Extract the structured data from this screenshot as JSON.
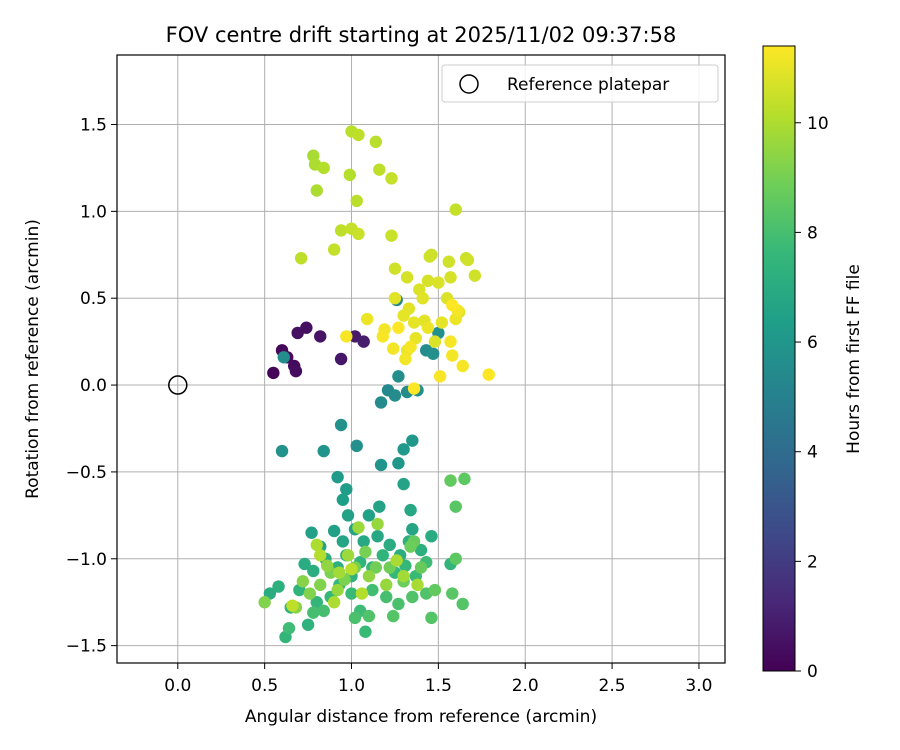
{
  "chart_data": {
    "type": "scatter",
    "title": "FOV centre drift starting at 2025/11/02 09:37:58",
    "xlabel": "Angular distance from reference (arcmin)",
    "ylabel": "Rotation from reference (arcmin)",
    "xlim": [
      -0.35,
      3.15
    ],
    "ylim": [
      -1.6,
      1.9
    ],
    "xticks": [
      0.0,
      0.5,
      1.0,
      1.5,
      2.0,
      2.5,
      3.0
    ],
    "xtick_labels": [
      "0.0",
      "0.5",
      "1.0",
      "1.5",
      "2.0",
      "2.5",
      "3.0"
    ],
    "yticks": [
      -1.5,
      -1.0,
      -0.5,
      0.0,
      0.5,
      1.0,
      1.5
    ],
    "ytick_labels": [
      "−1.5",
      "−1.0",
      "−0.5",
      "0.0",
      "0.5",
      "1.0",
      "1.5"
    ],
    "grid": true,
    "legend": {
      "location": "top-right",
      "entries": [
        "Reference platepar"
      ]
    },
    "reference_point": {
      "x": 0.0,
      "y": 0.0,
      "label": "Reference platepar"
    },
    "colorbar": {
      "label": "Hours from first FF file",
      "range": [
        0,
        11.4
      ],
      "ticks": [
        0,
        2,
        4,
        6,
        8,
        10
      ],
      "tick_labels": [
        "0",
        "2",
        "4",
        "6",
        "8",
        "10"
      ],
      "colormap": "viridis"
    },
    "points": [
      {
        "x": 0.55,
        "y": 0.07,
        "h": 0.1
      },
      {
        "x": 0.6,
        "y": 0.2,
        "h": 0.2
      },
      {
        "x": 0.63,
        "y": 0.16,
        "h": 0.3
      },
      {
        "x": 0.67,
        "y": 0.11,
        "h": 0.3
      },
      {
        "x": 0.68,
        "y": 0.08,
        "h": 0.4
      },
      {
        "x": 0.69,
        "y": 0.3,
        "h": 0.5
      },
      {
        "x": 0.74,
        "y": 0.33,
        "h": 0.5
      },
      {
        "x": 0.82,
        "y": 0.28,
        "h": 0.6
      },
      {
        "x": 0.94,
        "y": 0.15,
        "h": 0.7
      },
      {
        "x": 1.02,
        "y": 0.28,
        "h": 0.8
      },
      {
        "x": 1.07,
        "y": 0.25,
        "h": 0.9
      },
      {
        "x": 0.61,
        "y": 0.16,
        "h": 5.6
      },
      {
        "x": 0.6,
        "y": -0.38,
        "h": 5.8
      },
      {
        "x": 0.84,
        "y": -0.38,
        "h": 5.9
      },
      {
        "x": 0.94,
        "y": -0.23,
        "h": 5.8
      },
      {
        "x": 1.03,
        "y": -0.35,
        "h": 5.7
      },
      {
        "x": 1.17,
        "y": -0.1,
        "h": 5.5
      },
      {
        "x": 1.21,
        "y": -0.03,
        "h": 5.4
      },
      {
        "x": 1.25,
        "y": -0.06,
        "h": 5.5
      },
      {
        "x": 1.27,
        "y": 0.05,
        "h": 5.6
      },
      {
        "x": 1.32,
        "y": -0.04,
        "h": 5.5
      },
      {
        "x": 1.38,
        "y": -0.03,
        "h": 5.6
      },
      {
        "x": 1.26,
        "y": 0.49,
        "h": 5.3
      },
      {
        "x": 1.43,
        "y": 0.2,
        "h": 5.5
      },
      {
        "x": 1.47,
        "y": 0.18,
        "h": 5.7
      },
      {
        "x": 1.5,
        "y": 0.3,
        "h": 5.7
      },
      {
        "x": 1.17,
        "y": -0.46,
        "h": 5.9
      },
      {
        "x": 1.27,
        "y": -0.45,
        "h": 6.0
      },
      {
        "x": 1.3,
        "y": -0.37,
        "h": 6.1
      },
      {
        "x": 1.35,
        "y": -0.32,
        "h": 6.0
      },
      {
        "x": 0.92,
        "y": -0.53,
        "h": 6.2
      },
      {
        "x": 0.97,
        "y": -0.6,
        "h": 6.3
      },
      {
        "x": 0.95,
        "y": -0.66,
        "h": 6.4
      },
      {
        "x": 0.98,
        "y": -0.75,
        "h": 6.5
      },
      {
        "x": 1.1,
        "y": -0.75,
        "h": 6.5
      },
      {
        "x": 1.16,
        "y": -0.7,
        "h": 6.6
      },
      {
        "x": 1.3,
        "y": -0.57,
        "h": 6.6
      },
      {
        "x": 1.34,
        "y": -0.72,
        "h": 6.8
      },
      {
        "x": 1.35,
        "y": -0.83,
        "h": 6.7
      },
      {
        "x": 1.46,
        "y": -0.87,
        "h": 7.0
      },
      {
        "x": 0.77,
        "y": -0.85,
        "h": 6.5
      },
      {
        "x": 0.82,
        "y": -0.93,
        "h": 6.6
      },
      {
        "x": 0.9,
        "y": -0.84,
        "h": 6.5
      },
      {
        "x": 0.95,
        "y": -0.9,
        "h": 6.7
      },
      {
        "x": 1.02,
        "y": -0.83,
        "h": 6.6
      },
      {
        "x": 1.07,
        "y": -0.9,
        "h": 6.8
      },
      {
        "x": 1.15,
        "y": -0.87,
        "h": 6.8
      },
      {
        "x": 1.22,
        "y": -0.92,
        "h": 7.0
      },
      {
        "x": 1.28,
        "y": -0.98,
        "h": 7.1
      },
      {
        "x": 1.33,
        "y": -0.9,
        "h": 7.2
      },
      {
        "x": 1.4,
        "y": -0.95,
        "h": 7.2
      },
      {
        "x": 0.73,
        "y": -1.03,
        "h": 7.0
      },
      {
        "x": 0.78,
        "y": -1.07,
        "h": 7.1
      },
      {
        "x": 0.85,
        "y": -1.0,
        "h": 7.0
      },
      {
        "x": 0.92,
        "y": -1.05,
        "h": 7.2
      },
      {
        "x": 0.97,
        "y": -0.98,
        "h": 7.3
      },
      {
        "x": 1.0,
        "y": -1.1,
        "h": 7.3
      },
      {
        "x": 1.05,
        "y": -1.02,
        "h": 7.4
      },
      {
        "x": 1.12,
        "y": -1.05,
        "h": 7.5
      },
      {
        "x": 1.18,
        "y": -0.98,
        "h": 7.4
      },
      {
        "x": 1.25,
        "y": -1.08,
        "h": 7.6
      },
      {
        "x": 1.31,
        "y": -1.04,
        "h": 7.6
      },
      {
        "x": 1.37,
        "y": -1.1,
        "h": 7.7
      },
      {
        "x": 1.43,
        "y": -1.02,
        "h": 7.8
      },
      {
        "x": 1.57,
        "y": -1.03,
        "h": 7.5
      },
      {
        "x": 0.53,
        "y": -1.2,
        "h": 7.0
      },
      {
        "x": 0.58,
        "y": -1.16,
        "h": 7.2
      },
      {
        "x": 0.65,
        "y": -1.28,
        "h": 7.3
      },
      {
        "x": 0.7,
        "y": -1.18,
        "h": 7.4
      },
      {
        "x": 0.75,
        "y": -1.38,
        "h": 7.3
      },
      {
        "x": 0.8,
        "y": -1.25,
        "h": 7.5
      },
      {
        "x": 0.88,
        "y": -1.22,
        "h": 7.6
      },
      {
        "x": 0.93,
        "y": -1.15,
        "h": 7.6
      },
      {
        "x": 1.0,
        "y": -1.2,
        "h": 7.7
      },
      {
        "x": 1.05,
        "y": -1.3,
        "h": 7.8
      },
      {
        "x": 1.08,
        "y": -1.42,
        "h": 7.7
      },
      {
        "x": 1.12,
        "y": -1.18,
        "h": 7.9
      },
      {
        "x": 1.2,
        "y": -1.22,
        "h": 8.0
      },
      {
        "x": 1.27,
        "y": -1.26,
        "h": 8.1
      },
      {
        "x": 1.35,
        "y": -1.22,
        "h": 8.2
      },
      {
        "x": 1.43,
        "y": -1.2,
        "h": 8.2
      },
      {
        "x": 0.62,
        "y": -1.45,
        "h": 7.5
      },
      {
        "x": 0.64,
        "y": -1.4,
        "h": 7.8
      },
      {
        "x": 0.78,
        "y": -1.31,
        "h": 8.0
      },
      {
        "x": 0.84,
        "y": -1.3,
        "h": 8.0
      },
      {
        "x": 1.02,
        "y": -1.34,
        "h": 8.1
      },
      {
        "x": 1.1,
        "y": -1.33,
        "h": 8.2
      },
      {
        "x": 1.24,
        "y": -1.33,
        "h": 8.3
      },
      {
        "x": 1.46,
        "y": -1.34,
        "h": 8.3
      },
      {
        "x": 1.58,
        "y": -1.2,
        "h": 8.4
      },
      {
        "x": 1.64,
        "y": -1.26,
        "h": 8.3
      },
      {
        "x": 1.6,
        "y": -1.0,
        "h": 8.5
      },
      {
        "x": 1.6,
        "y": -0.7,
        "h": 8.4
      },
      {
        "x": 1.65,
        "y": -0.54,
        "h": 8.5
      },
      {
        "x": 1.57,
        "y": -0.55,
        "h": 8.6
      },
      {
        "x": 1.48,
        "y": -1.18,
        "h": 8.6
      },
      {
        "x": 1.4,
        "y": -1.05,
        "h": 8.7
      },
      {
        "x": 1.36,
        "y": -0.9,
        "h": 8.7
      },
      {
        "x": 1.34,
        "y": -0.93,
        "h": 8.8
      },
      {
        "x": 1.3,
        "y": -1.13,
        "h": 8.8
      },
      {
        "x": 1.22,
        "y": -1.05,
        "h": 8.9
      },
      {
        "x": 1.14,
        "y": -1.05,
        "h": 8.9
      },
      {
        "x": 1.08,
        "y": -0.96,
        "h": 9.0
      },
      {
        "x": 1.02,
        "y": -1.05,
        "h": 9.0
      },
      {
        "x": 0.96,
        "y": -1.12,
        "h": 9.1
      },
      {
        "x": 0.88,
        "y": -1.08,
        "h": 9.1
      },
      {
        "x": 0.82,
        "y": -1.15,
        "h": 9.2
      },
      {
        "x": 0.76,
        "y": -1.2,
        "h": 9.2
      },
      {
        "x": 0.72,
        "y": -1.13,
        "h": 9.3
      },
      {
        "x": 0.68,
        "y": -1.28,
        "h": 9.3
      },
      {
        "x": 0.5,
        "y": -1.25,
        "h": 9.2
      },
      {
        "x": 0.86,
        "y": -1.04,
        "h": 9.5
      },
      {
        "x": 0.92,
        "y": -1.18,
        "h": 9.6
      },
      {
        "x": 1.1,
        "y": -1.1,
        "h": 9.5
      },
      {
        "x": 1.2,
        "y": -1.15,
        "h": 9.6
      },
      {
        "x": 1.15,
        "y": -0.8,
        "h": 9.6
      },
      {
        "x": 1.04,
        "y": -0.82,
        "h": 9.7
      },
      {
        "x": 0.98,
        "y": -0.98,
        "h": 9.7
      },
      {
        "x": 0.93,
        "y": -1.08,
        "h": 9.8
      },
      {
        "x": 1.3,
        "y": -1.1,
        "h": 9.8
      },
      {
        "x": 1.38,
        "y": -1.15,
        "h": 9.9
      },
      {
        "x": 1.26,
        "y": -1.01,
        "h": 9.9
      },
      {
        "x": 0.8,
        "y": -0.92,
        "h": 10.0
      },
      {
        "x": 0.82,
        "y": -0.98,
        "h": 10.1
      },
      {
        "x": 0.9,
        "y": -1.25,
        "h": 10.0
      },
      {
        "x": 1.0,
        "y": -1.06,
        "h": 10.2
      },
      {
        "x": 1.06,
        "y": -1.2,
        "h": 10.1
      },
      {
        "x": 0.66,
        "y": -1.27,
        "h": 10.3
      },
      {
        "x": 0.79,
        "y": 1.27,
        "h": 10.0
      },
      {
        "x": 0.78,
        "y": 1.32,
        "h": 9.9
      },
      {
        "x": 0.8,
        "y": 1.12,
        "h": 10.0
      },
      {
        "x": 0.84,
        "y": 1.25,
        "h": 10.1
      },
      {
        "x": 1.0,
        "y": 1.46,
        "h": 10.2
      },
      {
        "x": 1.04,
        "y": 1.44,
        "h": 10.3
      },
      {
        "x": 1.14,
        "y": 1.4,
        "h": 10.2
      },
      {
        "x": 0.99,
        "y": 1.21,
        "h": 10.1
      },
      {
        "x": 1.16,
        "y": 1.24,
        "h": 10.3
      },
      {
        "x": 1.23,
        "y": 1.19,
        "h": 10.4
      },
      {
        "x": 1.03,
        "y": 1.06,
        "h": 10.2
      },
      {
        "x": 0.94,
        "y": 0.89,
        "h": 10.3
      },
      {
        "x": 1.0,
        "y": 0.9,
        "h": 10.4
      },
      {
        "x": 1.04,
        "y": 0.87,
        "h": 10.5
      },
      {
        "x": 0.9,
        "y": 0.78,
        "h": 10.4
      },
      {
        "x": 0.71,
        "y": 0.73,
        "h": 10.3
      },
      {
        "x": 1.23,
        "y": 0.86,
        "h": 10.5
      },
      {
        "x": 1.6,
        "y": 1.01,
        "h": 10.4
      },
      {
        "x": 1.45,
        "y": 0.74,
        "h": 10.6
      },
      {
        "x": 1.46,
        "y": 0.75,
        "h": 10.5
      },
      {
        "x": 1.56,
        "y": 0.71,
        "h": 10.6
      },
      {
        "x": 1.66,
        "y": 0.73,
        "h": 10.5
      },
      {
        "x": 1.67,
        "y": 0.72,
        "h": 10.6
      },
      {
        "x": 1.25,
        "y": 0.67,
        "h": 10.6
      },
      {
        "x": 1.32,
        "y": 0.62,
        "h": 10.7
      },
      {
        "x": 1.44,
        "y": 0.6,
        "h": 10.7
      },
      {
        "x": 1.5,
        "y": 0.59,
        "h": 10.8
      },
      {
        "x": 1.57,
        "y": 0.62,
        "h": 10.7
      },
      {
        "x": 1.71,
        "y": 0.63,
        "h": 10.6
      },
      {
        "x": 1.39,
        "y": 0.55,
        "h": 10.8
      },
      {
        "x": 1.25,
        "y": 0.5,
        "h": 10.9
      },
      {
        "x": 1.33,
        "y": 0.44,
        "h": 10.9
      },
      {
        "x": 1.41,
        "y": 0.5,
        "h": 10.9
      },
      {
        "x": 1.55,
        "y": 0.5,
        "h": 10.8
      },
      {
        "x": 1.62,
        "y": 0.42,
        "h": 10.9
      },
      {
        "x": 1.3,
        "y": 0.4,
        "h": 11.0
      },
      {
        "x": 1.36,
        "y": 0.36,
        "h": 11.0
      },
      {
        "x": 1.44,
        "y": 0.33,
        "h": 11.1
      },
      {
        "x": 1.52,
        "y": 0.36,
        "h": 11.0
      },
      {
        "x": 1.6,
        "y": 0.38,
        "h": 11.1
      },
      {
        "x": 1.09,
        "y": 0.38,
        "h": 11.1
      },
      {
        "x": 1.19,
        "y": 0.32,
        "h": 11.2
      },
      {
        "x": 1.24,
        "y": 0.21,
        "h": 11.2
      },
      {
        "x": 1.32,
        "y": 0.2,
        "h": 11.1
      },
      {
        "x": 1.34,
        "y": 0.22,
        "h": 11.3
      },
      {
        "x": 1.31,
        "y": 0.15,
        "h": 11.2
      },
      {
        "x": 1.57,
        "y": 0.25,
        "h": 11.3
      },
      {
        "x": 1.58,
        "y": 0.17,
        "h": 11.2
      },
      {
        "x": 1.64,
        "y": 0.11,
        "h": 11.3
      },
      {
        "x": 1.51,
        "y": 0.05,
        "h": 11.3
      },
      {
        "x": 1.79,
        "y": 0.06,
        "h": 11.4
      },
      {
        "x": 1.36,
        "y": -0.02,
        "h": 11.4
      },
      {
        "x": 0.97,
        "y": 0.28,
        "h": 11.3
      },
      {
        "x": 1.27,
        "y": 0.33,
        "h": 11.4
      },
      {
        "x": 1.18,
        "y": 0.28,
        "h": 11.3
      },
      {
        "x": 1.58,
        "y": 0.46,
        "h": 11.4
      },
      {
        "x": 1.61,
        "y": 0.43,
        "h": 11.2
      },
      {
        "x": 1.37,
        "y": 0.27,
        "h": 11.0
      },
      {
        "x": 1.42,
        "y": 0.37,
        "h": 10.9
      },
      {
        "x": 1.48,
        "y": 0.25,
        "h": 10.8
      }
    ]
  }
}
